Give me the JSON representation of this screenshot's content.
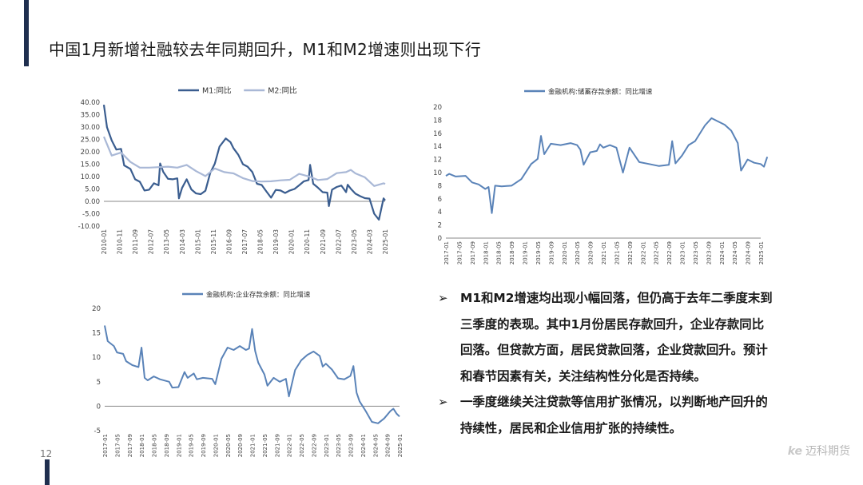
{
  "header": {
    "title": "中国1月新增社融较去年同期回升，M1和M2增速则出现下行",
    "page_number": "12"
  },
  "logo": {
    "mark": "ke",
    "name": "迈科期货"
  },
  "colors": {
    "primary": "#3a5d8f",
    "secondary": "#a9b8d6",
    "navy": "#1f2f4f"
  },
  "bullets": [
    {
      "text": "M1和M2增速均出现小幅回落，但仍高于去年二季度末到三季度的表现。其中1月份居民存款回升，企业存款同比回落。但贷款方面，居民贷款回落，企业贷款回升。预计和春节因素有关，关注结构性分化是否持续。"
    },
    {
      "text": "一季度继续关注贷款等信用扩张情况，以判断地产回升的持续性，居民和企业信用扩张的持续性。"
    }
  ],
  "chart_data": [
    {
      "type": "line",
      "legend_position": "top",
      "x_ticks": [
        "2010-01",
        "2010-11",
        "2011-09",
        "2012-07",
        "2013-05",
        "2014-03",
        "2015-01",
        "2015-11",
        "2016-09",
        "2017-07",
        "2018-05",
        "2019-03",
        "2020-01",
        "2020-11",
        "2021-09",
        "2022-07",
        "2023-05",
        "2024-03",
        "2025-01"
      ],
      "y_ticks": [
        "40.00",
        "35.00",
        "30.00",
        "25.00",
        "20.00",
        "15.00",
        "10.00",
        "5.00",
        "0.00",
        "-5.00",
        "-10.00"
      ],
      "ylim": [
        -10,
        40
      ],
      "x_range": [
        "2010-01",
        "2025-01"
      ],
      "series": [
        {
          "name": "M1:同比",
          "color": "#3a5d8f",
          "points": [
            [
              "2010-01",
              39.0
            ],
            [
              "2010-03",
              29.9
            ],
            [
              "2010-06",
              24.6
            ],
            [
              "2010-09",
              20.9
            ],
            [
              "2010-12",
              21.2
            ],
            [
              "2011-02",
              14.5
            ],
            [
              "2011-06",
              13.1
            ],
            [
              "2011-09",
              8.9
            ],
            [
              "2011-12",
              7.9
            ],
            [
              "2012-03",
              4.4
            ],
            [
              "2012-06",
              4.7
            ],
            [
              "2012-09",
              7.3
            ],
            [
              "2012-12",
              6.5
            ],
            [
              "2013-01",
              15.3
            ],
            [
              "2013-03",
              11.9
            ],
            [
              "2013-06",
              9.1
            ],
            [
              "2013-09",
              8.9
            ],
            [
              "2013-12",
              9.3
            ],
            [
              "2014-01",
              1.2
            ],
            [
              "2014-03",
              5.4
            ],
            [
              "2014-06",
              8.9
            ],
            [
              "2014-09",
              4.8
            ],
            [
              "2014-12",
              3.2
            ],
            [
              "2015-03",
              2.9
            ],
            [
              "2015-06",
              4.3
            ],
            [
              "2015-09",
              11.4
            ],
            [
              "2015-12",
              15.2
            ],
            [
              "2016-03",
              22.1
            ],
            [
              "2016-07",
              25.4
            ],
            [
              "2016-10",
              23.9
            ],
            [
              "2016-12",
              21.4
            ],
            [
              "2017-03",
              18.8
            ],
            [
              "2017-06",
              15.0
            ],
            [
              "2017-09",
              14.0
            ],
            [
              "2017-12",
              11.8
            ],
            [
              "2018-03",
              7.1
            ],
            [
              "2018-06",
              6.6
            ],
            [
              "2018-09",
              4.0
            ],
            [
              "2018-12",
              1.5
            ],
            [
              "2019-03",
              4.6
            ],
            [
              "2019-06",
              4.4
            ],
            [
              "2019-09",
              3.4
            ],
            [
              "2019-12",
              4.4
            ],
            [
              "2020-03",
              5.0
            ],
            [
              "2020-06",
              6.5
            ],
            [
              "2020-09",
              8.1
            ],
            [
              "2020-12",
              8.6
            ],
            [
              "2021-01",
              14.7
            ],
            [
              "2021-03",
              7.1
            ],
            [
              "2021-06",
              5.5
            ],
            [
              "2021-09",
              3.7
            ],
            [
              "2021-12",
              3.5
            ],
            [
              "2022-01",
              -1.9
            ],
            [
              "2022-03",
              4.7
            ],
            [
              "2022-06",
              5.8
            ],
            [
              "2022-09",
              6.4
            ],
            [
              "2022-12",
              3.7
            ],
            [
              "2023-01",
              6.7
            ],
            [
              "2023-03",
              5.1
            ],
            [
              "2023-06",
              3.1
            ],
            [
              "2023-09",
              2.1
            ],
            [
              "2023-12",
              1.3
            ],
            [
              "2024-03",
              1.1
            ],
            [
              "2024-06",
              -5.0
            ],
            [
              "2024-09",
              -7.4
            ],
            [
              "2024-12",
              1.2
            ],
            [
              "2025-01",
              0.4
            ]
          ]
        },
        {
          "name": "M2:同比",
          "color": "#a9b8d6",
          "points": [
            [
              "2010-01",
              26.1
            ],
            [
              "2010-06",
              18.5
            ],
            [
              "2010-12",
              19.7
            ],
            [
              "2011-06",
              15.9
            ],
            [
              "2011-12",
              13.6
            ],
            [
              "2012-06",
              13.6
            ],
            [
              "2012-12",
              13.8
            ],
            [
              "2013-06",
              14.0
            ],
            [
              "2013-12",
              13.6
            ],
            [
              "2014-06",
              14.7
            ],
            [
              "2014-12",
              12.2
            ],
            [
              "2015-06",
              10.2
            ],
            [
              "2015-12",
              13.3
            ],
            [
              "2016-06",
              11.8
            ],
            [
              "2016-12",
              11.3
            ],
            [
              "2017-06",
              9.4
            ],
            [
              "2017-12",
              8.2
            ],
            [
              "2018-06",
              8.0
            ],
            [
              "2018-12",
              8.1
            ],
            [
              "2019-06",
              8.5
            ],
            [
              "2019-12",
              8.7
            ],
            [
              "2020-06",
              11.1
            ],
            [
              "2020-12",
              10.1
            ],
            [
              "2021-06",
              8.6
            ],
            [
              "2021-12",
              9.0
            ],
            [
              "2022-06",
              11.4
            ],
            [
              "2022-12",
              11.8
            ],
            [
              "2023-03",
              12.7
            ],
            [
              "2023-06",
              11.3
            ],
            [
              "2023-12",
              9.7
            ],
            [
              "2024-06",
              6.2
            ],
            [
              "2024-12",
              7.3
            ],
            [
              "2025-01",
              7.0
            ]
          ]
        }
      ]
    },
    {
      "type": "line",
      "legend_position": "top",
      "x_ticks": [
        "2017-01",
        "2017-05",
        "2017-09",
        "2018-01",
        "2018-05",
        "2018-09",
        "2019-01",
        "2019-05",
        "2019-09",
        "2020-01",
        "2020-05",
        "2020-09",
        "2021-01",
        "2021-05",
        "2021-09",
        "2022-01",
        "2022-05",
        "2022-09",
        "2023-01",
        "2023-05",
        "2023-09",
        "2024-01",
        "2024-05",
        "2024-09",
        "2025-01"
      ],
      "y_ticks": [
        "20",
        "18",
        "16",
        "14",
        "12",
        "10",
        "8",
        "6",
        "4",
        "2",
        "0"
      ],
      "ylim": [
        0,
        20
      ],
      "x_range": [
        "2017-01",
        "2025-01"
      ],
      "series": [
        {
          "name": "金融机构:储蓄存款余额：同比增速",
          "color": "#5a83b8",
          "points": [
            [
              "2017-01",
              9.5
            ],
            [
              "2017-02",
              9.8
            ],
            [
              "2017-04",
              9.4
            ],
            [
              "2017-07",
              9.5
            ],
            [
              "2017-09",
              8.5
            ],
            [
              "2017-11",
              8.2
            ],
            [
              "2018-01",
              7.5
            ],
            [
              "2018-02",
              7.8
            ],
            [
              "2018-03",
              3.8
            ],
            [
              "2018-04",
              8.0
            ],
            [
              "2018-06",
              7.9
            ],
            [
              "2018-09",
              8.0
            ],
            [
              "2018-12",
              9.0
            ],
            [
              "2019-03",
              11.3
            ],
            [
              "2019-05",
              12.1
            ],
            [
              "2019-06",
              15.6
            ],
            [
              "2019-07",
              12.8
            ],
            [
              "2019-09",
              14.4
            ],
            [
              "2019-12",
              14.2
            ],
            [
              "2020-03",
              14.5
            ],
            [
              "2020-05",
              14.2
            ],
            [
              "2020-06",
              13.5
            ],
            [
              "2020-07",
              11.2
            ],
            [
              "2020-09",
              13.1
            ],
            [
              "2020-11",
              13.3
            ],
            [
              "2020-12",
              14.3
            ],
            [
              "2021-01",
              13.8
            ],
            [
              "2021-03",
              14.2
            ],
            [
              "2021-05",
              13.8
            ],
            [
              "2021-07",
              10.0
            ],
            [
              "2021-09",
              13.8
            ],
            [
              "2021-12",
              11.6
            ],
            [
              "2022-03",
              11.3
            ],
            [
              "2022-06",
              11.0
            ],
            [
              "2022-09",
              11.2
            ],
            [
              "2022-10",
              14.8
            ],
            [
              "2022-11",
              11.4
            ],
            [
              "2023-01",
              12.6
            ],
            [
              "2023-03",
              14.2
            ],
            [
              "2023-05",
              14.8
            ],
            [
              "2023-07",
              16.4
            ],
            [
              "2023-08",
              17.2
            ],
            [
              "2023-10",
              18.3
            ],
            [
              "2023-12",
              17.8
            ],
            [
              "2024-02",
              17.3
            ],
            [
              "2024-04",
              16.4
            ],
            [
              "2024-06",
              14.5
            ],
            [
              "2024-07",
              10.3
            ],
            [
              "2024-09",
              12.0
            ],
            [
              "2024-11",
              11.5
            ],
            [
              "2025-01",
              11.3
            ],
            [
              "2025-02",
              10.9
            ],
            [
              "2025-03",
              12.4
            ]
          ]
        }
      ]
    },
    {
      "type": "line",
      "legend_position": "top",
      "x_ticks": [
        "2017-01",
        "2017-05",
        "2017-09",
        "2018-01",
        "2018-05",
        "2018-09",
        "2019-01",
        "2019-05",
        "2019-09",
        "2020-01",
        "2020-05",
        "2020-09",
        "2021-01",
        "2021-05",
        "2021-09",
        "2022-01",
        "2022-05",
        "2022-09",
        "2023-01",
        "2023-05",
        "2023-09",
        "2024-01",
        "2024-05",
        "2024-09",
        "2025-01"
      ],
      "y_ticks": [
        "20",
        "15",
        "10",
        "5",
        "0",
        "-5"
      ],
      "ylim": [
        -5,
        20
      ],
      "x_range": [
        "2017-01",
        "2025-01"
      ],
      "series": [
        {
          "name": "金融机构:企业存款余额：同比增速",
          "color": "#5a83b8",
          "points": [
            [
              "2017-01",
              16.5
            ],
            [
              "2017-02",
              13.3
            ],
            [
              "2017-04",
              12.3
            ],
            [
              "2017-05",
              11.0
            ],
            [
              "2017-07",
              10.7
            ],
            [
              "2017-08",
              9.2
            ],
            [
              "2017-10",
              8.4
            ],
            [
              "2017-12",
              8.0
            ],
            [
              "2018-01",
              12.0
            ],
            [
              "2018-02",
              5.8
            ],
            [
              "2018-03",
              5.3
            ],
            [
              "2018-05",
              6.1
            ],
            [
              "2018-07",
              5.5
            ],
            [
              "2018-10",
              5.0
            ],
            [
              "2018-11",
              3.8
            ],
            [
              "2019-01",
              3.9
            ],
            [
              "2019-03",
              7.0
            ],
            [
              "2019-04",
              5.8
            ],
            [
              "2019-06",
              6.7
            ],
            [
              "2019-07",
              5.5
            ],
            [
              "2019-09",
              5.8
            ],
            [
              "2019-12",
              5.6
            ],
            [
              "2020-01",
              4.5
            ],
            [
              "2020-03",
              9.7
            ],
            [
              "2020-05",
              12.0
            ],
            [
              "2020-07",
              11.5
            ],
            [
              "2020-09",
              12.3
            ],
            [
              "2020-11",
              11.5
            ],
            [
              "2020-12",
              11.8
            ],
            [
              "2021-01",
              15.8
            ],
            [
              "2021-02",
              11.3
            ],
            [
              "2021-03",
              8.9
            ],
            [
              "2021-05",
              6.5
            ],
            [
              "2021-06",
              4.2
            ],
            [
              "2021-08",
              5.8
            ],
            [
              "2021-10",
              5.0
            ],
            [
              "2021-12",
              5.6
            ],
            [
              "2022-01",
              2.0
            ],
            [
              "2022-03",
              7.4
            ],
            [
              "2022-05",
              9.4
            ],
            [
              "2022-07",
              10.5
            ],
            [
              "2022-09",
              11.2
            ],
            [
              "2022-11",
              10.3
            ],
            [
              "2022-12",
              8.1
            ],
            [
              "2023-01",
              8.7
            ],
            [
              "2023-03",
              7.5
            ],
            [
              "2023-05",
              5.7
            ],
            [
              "2023-07",
              5.5
            ],
            [
              "2023-09",
              6.2
            ],
            [
              "2023-10",
              8.2
            ],
            [
              "2023-11",
              2.8
            ],
            [
              "2023-12",
              1.0
            ],
            [
              "2024-02",
              -1.0
            ],
            [
              "2024-04",
              -3.2
            ],
            [
              "2024-06",
              -3.5
            ],
            [
              "2024-08",
              -2.5
            ],
            [
              "2024-10",
              -1.0
            ],
            [
              "2024-11",
              -0.5
            ],
            [
              "2024-12",
              -1.5
            ],
            [
              "2025-01",
              -2.1
            ]
          ]
        }
      ]
    }
  ]
}
